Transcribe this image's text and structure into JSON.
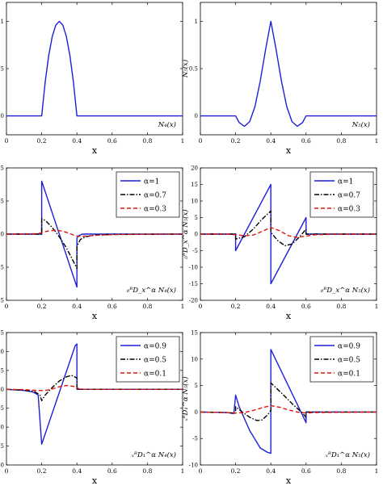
{
  "colors": {
    "axis": "#000000",
    "series_blue": "#1f1fd6",
    "series_black": "#000000",
    "series_red": "#e0140f",
    "background": "#ffffff"
  },
  "chart_data": [
    {
      "id": "N4",
      "type": "line",
      "ylabel": "N₄(x)",
      "xlabel": "x",
      "annotation": "N₄(x)",
      "xlim": [
        0,
        1
      ],
      "ylim": [
        -0.2,
        1.2
      ],
      "xticks": [
        0,
        0.2,
        0.4,
        0.6,
        0.8,
        1
      ],
      "yticks": [
        0,
        0.5,
        1
      ],
      "xtick_labels": [
        "0",
        "0.2",
        "0.4",
        "0.6",
        "0.8",
        "1"
      ],
      "ytick_labels": [
        "0",
        "0.5",
        "1"
      ],
      "legend": null,
      "series": [
        {
          "color": "blue",
          "dash": "solid",
          "x": [
            0,
            0.2,
            0.22,
            0.24,
            0.26,
            0.28,
            0.3,
            0.32,
            0.34,
            0.36,
            0.38,
            0.4,
            1
          ],
          "y": [
            0,
            0,
            0.36,
            0.64,
            0.84,
            0.96,
            1.0,
            0.96,
            0.84,
            0.64,
            0.36,
            0,
            0
          ]
        }
      ]
    },
    {
      "id": "N5",
      "type": "line",
      "ylabel": "N₅(x)",
      "xlabel": "x",
      "annotation": "N₅(x)",
      "xlim": [
        0,
        1
      ],
      "ylim": [
        -0.2,
        1.2
      ],
      "xticks": [
        0,
        0.2,
        0.4,
        0.6,
        0.8,
        1
      ],
      "yticks": [
        0,
        0.5,
        1
      ],
      "xtick_labels": [
        "0",
        "0.2",
        "0.4",
        "0.6",
        "0.8",
        "1"
      ],
      "ytick_labels": [
        "0",
        "0.5",
        "1"
      ],
      "legend": null,
      "series": [
        {
          "color": "blue",
          "dash": "solid",
          "x": [
            0,
            0.2,
            0.22,
            0.25,
            0.28,
            0.31,
            0.34,
            0.37,
            0.4,
            0.43,
            0.46,
            0.49,
            0.52,
            0.55,
            0.58,
            0.6,
            1
          ],
          "y": [
            0,
            0,
            -0.07,
            -0.11,
            -0.06,
            0.1,
            0.37,
            0.7,
            1.0,
            0.7,
            0.37,
            0.1,
            -0.06,
            -0.11,
            -0.07,
            0,
            0
          ]
        }
      ]
    },
    {
      "id": "left-derivative-N4",
      "type": "line",
      "ylabel": "₀ᴿD_x^α N₄(x)",
      "xlabel": "x",
      "annotation": "₀ᴿD_x^α N₄(x)",
      "xlim": [
        0,
        1
      ],
      "ylim": [
        -25,
        25
      ],
      "xticks": [
        0,
        0.2,
        0.4,
        0.6,
        0.8,
        1
      ],
      "yticks": [
        -25,
        -12.5,
        0,
        12.5,
        25
      ],
      "xtick_labels": [
        "0",
        "0.2",
        "0.4",
        "0.6",
        "0.8",
        "1"
      ],
      "ytick_labels": [
        "-25",
        "-12.5",
        "0",
        "12.5",
        "25"
      ],
      "legend": [
        "α=1",
        "α=0.7",
        "α=0.3"
      ],
      "series": [
        {
          "name": "α=1",
          "color": "blue",
          "dash": "solid",
          "x": [
            0,
            0.2,
            0.2,
            0.4,
            0.4,
            0.41,
            0.43,
            1
          ],
          "y": [
            0,
            0,
            20,
            -20,
            -1.5,
            -0.6,
            0,
            0
          ]
        },
        {
          "name": "α=0.7",
          "color": "black",
          "dash": "dashdot",
          "x": [
            0,
            0.2,
            0.2,
            0.22,
            0.25,
            0.28,
            0.31,
            0.34,
            0.37,
            0.4,
            0.4,
            0.42,
            0.45,
            0.5,
            0.6,
            1
          ],
          "y": [
            0,
            0,
            5.8,
            5.2,
            3.2,
            0.8,
            -2.0,
            -5.2,
            -9.0,
            -13.0,
            -4.5,
            -2.0,
            -1.0,
            -0.4,
            -0.1,
            0
          ]
        },
        {
          "name": "α=0.3",
          "color": "red",
          "dash": "dashed",
          "x": [
            0,
            0.1,
            0.18,
            0.2,
            0.24,
            0.28,
            0.32,
            0.36,
            0.39,
            0.42,
            0.46,
            0.52,
            0.6,
            0.8,
            1
          ],
          "y": [
            0,
            0,
            0.2,
            0.6,
            1.2,
            1.5,
            1.1,
            0.2,
            -0.6,
            -0.9,
            -0.7,
            -0.4,
            -0.2,
            -0.05,
            0
          ]
        }
      ]
    },
    {
      "id": "left-derivative-N5",
      "type": "line",
      "ylabel": "₀ᴿD_x^α N₅(x)",
      "xlabel": "x",
      "annotation": "₀ᴿD_x^α N₅(x)",
      "xlim": [
        0,
        1
      ],
      "ylim": [
        -20,
        20
      ],
      "xticks": [
        0,
        0.2,
        0.4,
        0.6,
        0.8,
        1
      ],
      "yticks": [
        -20,
        -15,
        -10,
        -5,
        0,
        5,
        10,
        15,
        20
      ],
      "xtick_labels": [
        "0",
        "0.2",
        "0.4",
        "0.6",
        "0.8",
        "1"
      ],
      "ytick_labels": [
        "-20",
        "-15",
        "-10",
        "-5",
        "0",
        "5",
        "10",
        "15",
        "20"
      ],
      "legend": [
        "α=1",
        "α=0.7",
        "α=0.3"
      ],
      "series": [
        {
          "name": "α=1",
          "color": "blue",
          "dash": "solid",
          "x": [
            0,
            0.2,
            0.2,
            0.4,
            0.4,
            0.6,
            0.6,
            1
          ],
          "y": [
            0,
            0,
            -5,
            15,
            -15,
            5,
            0,
            0
          ]
        },
        {
          "name": "α=0.7",
          "color": "black",
          "dash": "dashdot",
          "x": [
            0,
            0.2,
            0.2,
            0.25,
            0.3,
            0.35,
            0.4,
            0.4,
            0.44,
            0.48,
            0.52,
            0.56,
            0.6,
            0.6,
            0.64,
            1
          ],
          "y": [
            0,
            0,
            -1.5,
            -0.8,
            1.5,
            4.5,
            7.0,
            0.5,
            -2.0,
            -3.5,
            -3.0,
            -1.0,
            1.5,
            0,
            0,
            0
          ]
        },
        {
          "name": "α=0.3",
          "color": "red",
          "dash": "dashed",
          "x": [
            0,
            0.15,
            0.2,
            0.25,
            0.3,
            0.35,
            0.4,
            0.45,
            0.5,
            0.55,
            0.6,
            0.65,
            0.75,
            1
          ],
          "y": [
            0,
            0,
            -0.2,
            -0.5,
            -0.3,
            0.8,
            2.0,
            1.0,
            -0.5,
            -1.0,
            -0.6,
            -0.2,
            -0.05,
            0
          ]
        }
      ]
    },
    {
      "id": "right-derivative-N4",
      "type": "line",
      "ylabel": "ₓᴿD₁^α N₄(x)",
      "xlabel": "x",
      "annotation": "ₓᴿD₁^α N₄(x)",
      "xlim": [
        0,
        1
      ],
      "ylim": [
        -20,
        15
      ],
      "xticks": [
        0,
        0.2,
        0.4,
        0.6,
        0.8,
        1
      ],
      "yticks": [
        -20,
        -15,
        -10,
        -5,
        0,
        5,
        10,
        15
      ],
      "xtick_labels": [
        "0",
        "0.2",
        "0.4",
        "0.6",
        "0.8",
        "1"
      ],
      "ytick_labels": [
        "-20",
        "-15",
        "-10",
        "-5",
        "0",
        "5",
        "10",
        "15"
      ],
      "legend": [
        "α=0.9",
        "α=0.5",
        "α=0.1"
      ],
      "series": [
        {
          "name": "α=0.9",
          "color": "blue",
          "dash": "solid",
          "x": [
            0,
            0.1,
            0.15,
            0.18,
            0.2,
            0.39,
            0.4,
            0.4,
            1
          ],
          "y": [
            0,
            -0.3,
            -0.7,
            -1.5,
            -14.5,
            11.5,
            12.0,
            0,
            0
          ]
        },
        {
          "name": "α=0.5",
          "color": "black",
          "dash": "dashdot",
          "x": [
            0,
            0.1,
            0.16,
            0.19,
            0.2,
            0.22,
            0.26,
            0.3,
            0.34,
            0.37,
            0.4,
            0.4,
            1
          ],
          "y": [
            0,
            -0.2,
            -0.6,
            -1.5,
            -3.0,
            -1.5,
            0.5,
            2.2,
            3.3,
            3.7,
            3.0,
            0,
            0
          ]
        },
        {
          "name": "α=0.1",
          "color": "red",
          "dash": "dashed",
          "x": [
            0,
            0.1,
            0.18,
            0.22,
            0.26,
            0.3,
            0.34,
            0.38,
            0.4,
            0.42,
            1
          ],
          "y": [
            0,
            -0.1,
            -0.3,
            -0.3,
            0.1,
            0.7,
            1.0,
            0.8,
            0.4,
            0,
            0
          ]
        }
      ]
    },
    {
      "id": "right-derivative-N5",
      "type": "line",
      "ylabel": "ₓᴿD₁^α N₅(x)",
      "xlabel": "x",
      "annotation": "ₓᴿD₁^α N₅(x)",
      "xlim": [
        0,
        1
      ],
      "ylim": [
        -10,
        15
      ],
      "xticks": [
        0,
        0.2,
        0.4,
        0.6,
        0.8,
        1
      ],
      "yticks": [
        -10,
        -5,
        0,
        5,
        10,
        15
      ],
      "xtick_labels": [
        "0",
        "0.2",
        "0.4",
        "0.6",
        "0.8",
        "1"
      ],
      "ytick_labels": [
        "-10",
        "-5",
        "0",
        "5",
        "10",
        "15"
      ],
      "legend": [
        "α=0.9",
        "α=0.5",
        "α=0.1"
      ],
      "series": [
        {
          "name": "α=0.9",
          "color": "blue",
          "dash": "solid",
          "x": [
            0,
            0.15,
            0.19,
            0.2,
            0.2,
            0.22,
            0.28,
            0.34,
            0.38,
            0.4,
            0.4,
            0.6,
            0.6,
            1
          ],
          "y": [
            0,
            -0.1,
            -0.3,
            3.2,
            3.2,
            1.0,
            -3.5,
            -6.8,
            -7.6,
            -7.8,
            11.8,
            -2.0,
            0,
            0
          ]
        },
        {
          "name": "α=0.5",
          "color": "black",
          "dash": "dashdot",
          "x": [
            0,
            0.15,
            0.2,
            0.2,
            0.23,
            0.28,
            0.32,
            0.35,
            0.38,
            0.4,
            0.4,
            0.46,
            0.52,
            0.58,
            0.6,
            0.6,
            1
          ],
          "y": [
            0,
            -0.1,
            -0.2,
            1.0,
            0.2,
            -1.0,
            -1.6,
            -1.5,
            -0.6,
            0.3,
            5.5,
            3.6,
            1.6,
            -0.2,
            -1.0,
            0,
            0
          ]
        },
        {
          "name": "α=0.1",
          "color": "red",
          "dash": "dashed",
          "x": [
            0,
            0.15,
            0.2,
            0.25,
            0.3,
            0.35,
            0.4,
            0.45,
            0.5,
            0.55,
            0.6,
            0.65,
            1
          ],
          "y": [
            0,
            -0.1,
            -0.2,
            -0.1,
            0.3,
            0.8,
            1.2,
            0.9,
            0.4,
            0,
            -0.2,
            -0.1,
            0
          ]
        }
      ]
    }
  ]
}
